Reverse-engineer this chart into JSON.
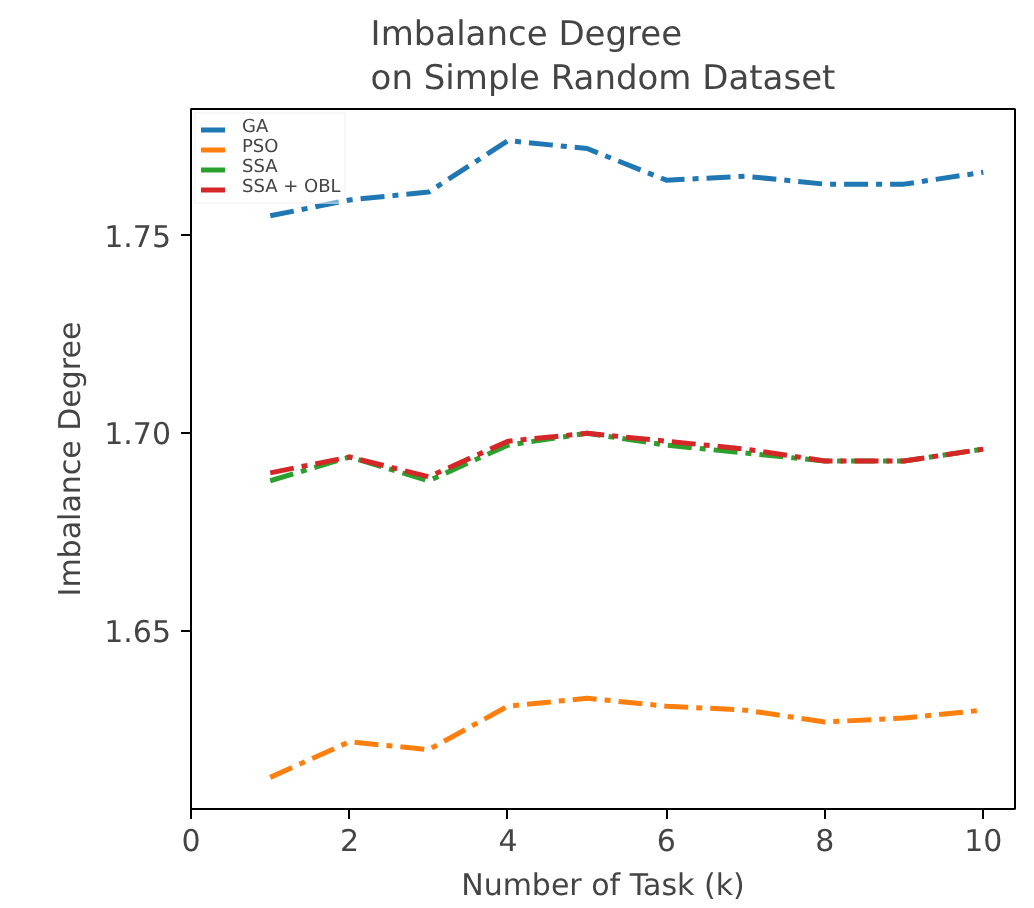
{
  "chart_data": {
    "type": "line",
    "title": "Imbalance Degree\non Simple Random Dataset",
    "xlabel": "Number of Task (k)",
    "ylabel": "Imbalance Degree",
    "x": [
      1,
      2,
      3,
      4,
      5,
      6,
      7,
      8,
      9,
      10
    ],
    "series": [
      {
        "name": "GA",
        "color": "#1f77b4",
        "values": [
          1.755,
          1.759,
          1.761,
          1.774,
          1.772,
          1.764,
          1.765,
          1.763,
          1.763,
          1.766
        ]
      },
      {
        "name": "PSO",
        "color": "#ff7f0e",
        "values": [
          1.613,
          1.622,
          1.62,
          1.631,
          1.633,
          1.631,
          1.63,
          1.627,
          1.628,
          1.63
        ]
      },
      {
        "name": "SSA",
        "color": "#2ca02c",
        "values": [
          1.688,
          1.694,
          1.688,
          1.697,
          1.7,
          1.697,
          1.695,
          1.693,
          1.693,
          1.696
        ]
      },
      {
        "name": "SSA + OBL",
        "color": "#d62728",
        "values": [
          1.69,
          1.694,
          1.689,
          1.698,
          1.7,
          1.698,
          1.696,
          1.693,
          1.693,
          1.696
        ]
      }
    ],
    "xlim": [
      0,
      10.4
    ],
    "ylim": [
      1.605,
      1.782
    ],
    "xticks": [
      0,
      2,
      4,
      6,
      8,
      10
    ],
    "yticks": [
      1.65,
      {
        "value": 1.7,
        "label": "1.70"
      },
      1.75
    ],
    "line_style": "dashdot",
    "legend": "top left",
    "grid": false
  }
}
